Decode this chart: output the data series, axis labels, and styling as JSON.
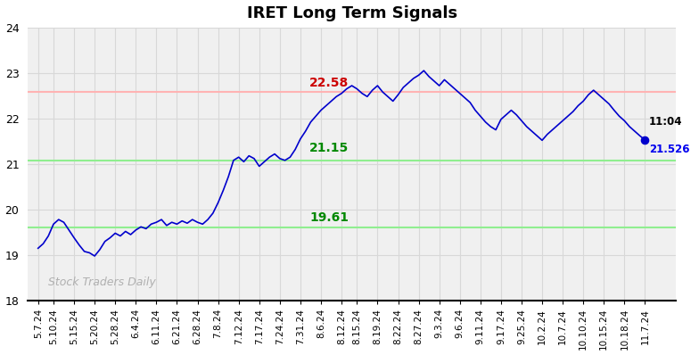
{
  "title": "IRET Long Term Signals",
  "ylim": [
    18,
    24
  ],
  "yticks": [
    18,
    19,
    20,
    21,
    22,
    23,
    24
  ],
  "hline_red": 22.58,
  "hline_green1": 21.08,
  "hline_green2": 19.61,
  "hline_red_color": "#ffb3b3",
  "hline_green_color": "#90ee90",
  "line_color": "#0000cc",
  "annotation_red_color": "#cc0000",
  "annotation_green_color": "#008800",
  "annotation_end_color": "#0000ee",
  "watermark_text": "Stock Traders Daily",
  "watermark_color": "#b0b0b0",
  "last_label": "11:04",
  "last_value": "21.526",
  "last_dot_color": "#0000cc",
  "background_color": "#ffffff",
  "plot_bg_color": "#f0f0f0",
  "grid_color": "#d8d8d8",
  "xtick_labels": [
    "5.7.24",
    "5.10.24",
    "5.15.24",
    "5.20.24",
    "5.28.24",
    "6.4.24",
    "6.11.24",
    "6.21.24",
    "6.28.24",
    "7.8.24",
    "7.12.24",
    "7.17.24",
    "7.24.24",
    "7.31.24",
    "8.6.24",
    "8.12.24",
    "8.15.24",
    "8.19.24",
    "8.22.24",
    "8.27.24",
    "9.3.24",
    "9.6.24",
    "9.11.24",
    "9.17.24",
    "9.25.24",
    "10.2.24",
    "10.7.24",
    "10.10.24",
    "10.15.24",
    "10.18.24",
    "11.7.24"
  ],
  "prices": [
    19.15,
    19.25,
    19.42,
    19.68,
    19.78,
    19.72,
    19.55,
    19.38,
    19.22,
    19.08,
    19.05,
    18.98,
    19.12,
    19.3,
    19.38,
    19.48,
    19.42,
    19.52,
    19.45,
    19.55,
    19.62,
    19.58,
    19.68,
    19.72,
    19.78,
    19.65,
    19.72,
    19.68,
    19.75,
    19.7,
    19.78,
    19.72,
    19.68,
    19.78,
    19.92,
    20.15,
    20.42,
    20.72,
    21.08,
    21.15,
    21.05,
    21.18,
    21.12,
    20.95,
    21.05,
    21.15,
    21.22,
    21.12,
    21.08,
    21.15,
    21.32,
    21.55,
    21.72,
    21.92,
    22.05,
    22.18,
    22.28,
    22.38,
    22.48,
    22.55,
    22.65,
    22.72,
    22.65,
    22.55,
    22.48,
    22.62,
    22.72,
    22.58,
    22.48,
    22.38,
    22.52,
    22.68,
    22.78,
    22.88,
    22.95,
    23.05,
    22.92,
    22.82,
    22.72,
    22.85,
    22.75,
    22.65,
    22.55,
    22.45,
    22.35,
    22.18,
    22.05,
    21.92,
    21.82,
    21.75,
    21.98,
    22.08,
    22.18,
    22.08,
    21.95,
    21.82,
    21.72,
    21.62,
    21.52,
    21.65,
    21.75,
    21.85,
    21.95,
    22.05,
    22.15,
    22.28,
    22.38,
    22.52,
    22.62,
    22.52,
    22.42,
    22.32,
    22.18,
    22.05,
    21.95,
    21.82,
    21.72,
    21.62,
    21.526
  ]
}
